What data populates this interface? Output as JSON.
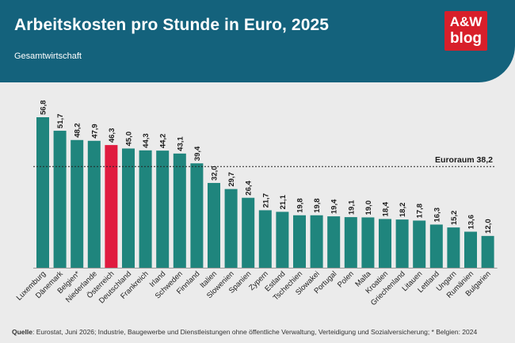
{
  "header": {
    "title": "Arbeitskosten pro Stunde in Euro, 2025",
    "subtitle": "Gesamtwirtschaft",
    "logo_line1": "A&W",
    "logo_line2": "blog"
  },
  "colors": {
    "header_bg": "#14627c",
    "bar": "#1f857d",
    "bar_highlight": "#e01b3f",
    "logo_bg": "#d81f2a",
    "background": "#ebebeb"
  },
  "chart_data": {
    "type": "bar",
    "title": "Arbeitskosten pro Stunde in Euro, 2025",
    "subtitle": "Gesamtwirtschaft",
    "categories": [
      "Luxemburg",
      "Dänemark",
      "Belgien*",
      "Niederlande",
      "Österreich",
      "Deutschland",
      "Frankreich",
      "Irland",
      "Schweden",
      "Finnland",
      "Italien",
      "Slowenien",
      "Spanien",
      "Zypern",
      "Estland",
      "Tschechien",
      "Slowakei",
      "Portugal",
      "Polen",
      "Malta",
      "Kroatien",
      "Griechenland",
      "Litauen",
      "Lettland",
      "Ungarn",
      "Rumänien",
      "Bulgarien"
    ],
    "values": [
      56.8,
      51.7,
      48.2,
      47.9,
      46.3,
      45.0,
      44.3,
      44.2,
      43.1,
      39.4,
      32.0,
      29.7,
      26.4,
      21.7,
      21.1,
      19.8,
      19.8,
      19.4,
      19.1,
      19.0,
      18.4,
      18.2,
      17.8,
      16.3,
      15.2,
      13.6,
      12.0
    ],
    "value_labels": [
      "56,8",
      "51,7",
      "48,2",
      "47,9",
      "46,3",
      "45,0",
      "44,3",
      "44,2",
      "43,1",
      "39,4",
      "32,0",
      "29,7",
      "26,4",
      "21,7",
      "21,1",
      "19,8",
      "19,8",
      "19,4",
      "19,1",
      "19,0",
      "18,4",
      "18,2",
      "17,8",
      "16,3",
      "15,2",
      "13,6",
      "12,0"
    ],
    "highlight_category": "Österreich",
    "reference_line": {
      "label": "Euroraum 38,2",
      "value": 38.2,
      "style": "dotted"
    },
    "ylim": [
      0,
      60
    ],
    "grid": false,
    "legend": "none"
  },
  "footer": {
    "source_label": "Quelle",
    "source_text": ": Eurostat, Juni 2026; Industrie, Baugewerbe und Dienstleistungen ohne öffentliche Verwaltung, Verteidigung und Sozialversicherung; * Belgien: 2024"
  }
}
